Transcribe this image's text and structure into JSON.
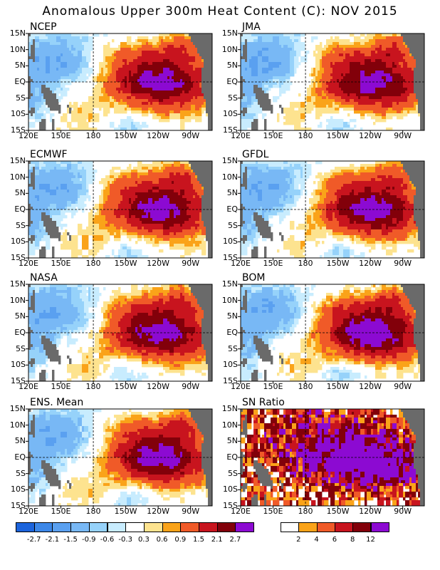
{
  "title": "Anomalous Upper 300m Heat Content (C): NOV 2015",
  "chart_data": [
    {
      "type": "heatmap",
      "title": "NCEP",
      "center_peak": 2.9,
      "xticks": [
        "120E",
        "150E",
        "180",
        "150W",
        "120W",
        "90W"
      ],
      "yticks": [
        "15N",
        "10N",
        "5N",
        "EQ",
        "5S",
        "10S",
        "15S"
      ]
    },
    {
      "type": "heatmap",
      "title": "JMA",
      "center_peak": 2.9,
      "xticks": [
        "120E",
        "150E",
        "180",
        "150W",
        "120W",
        "90W"
      ],
      "yticks": [
        "15N",
        "10N",
        "5N",
        "EQ",
        "5S",
        "10S",
        "15S"
      ]
    },
    {
      "type": "heatmap",
      "title": "ECMWF",
      "center_peak": 2.9,
      "xticks": [
        "120E",
        "150E",
        "180",
        "150W",
        "120W",
        "90W"
      ],
      "yticks": [
        "15N",
        "10N",
        "5N",
        "EQ",
        "5S",
        "10S",
        "15S"
      ]
    },
    {
      "type": "heatmap",
      "title": "GFDL",
      "center_peak": 2.9,
      "xticks": [
        "120E",
        "150E",
        "180",
        "150W",
        "120W",
        "90W"
      ],
      "yticks": [
        "15N",
        "10N",
        "5N",
        "EQ",
        "5S",
        "10S",
        "15S"
      ]
    },
    {
      "type": "heatmap",
      "title": "NASA",
      "center_peak": 2.9,
      "xticks": [
        "120E",
        "150E",
        "180",
        "150W",
        "120W",
        "90W"
      ],
      "yticks": [
        "15N",
        "10N",
        "5N",
        "EQ",
        "5S",
        "10S",
        "15S"
      ]
    },
    {
      "type": "heatmap",
      "title": "BOM",
      "center_peak": 3.2,
      "xticks": [
        "120E",
        "150E",
        "180",
        "150W",
        "120W",
        "90W"
      ],
      "yticks": [
        "15N",
        "10N",
        "5N",
        "EQ",
        "5S",
        "10S",
        "15S"
      ]
    },
    {
      "type": "heatmap",
      "title": "ENS. Mean",
      "center_peak": 2.9,
      "xticks": [
        "120E",
        "150E",
        "180",
        "150W",
        "120W",
        "90W"
      ],
      "yticks": [
        "15N",
        "10N",
        "5N",
        "EQ",
        "5S",
        "10S",
        "15S"
      ]
    },
    {
      "type": "heatmap",
      "title": "SN Ratio",
      "center_peak": 14,
      "xticks": [
        "120E",
        "150E",
        "180",
        "150W",
        "120W",
        "90W"
      ],
      "yticks": [
        "15N",
        "10N",
        "5N",
        "EQ",
        "5S",
        "10S",
        "15S"
      ]
    }
  ],
  "colorbar_anomaly": {
    "labels": [
      "-2.7",
      "-2.1",
      "-1.5",
      "-0.9",
      "-0.6",
      "-0.3",
      "0.3",
      "0.6",
      "0.9",
      "1.5",
      "2.1",
      "2.7"
    ],
    "colors": [
      "#1c64dc",
      "#3c87e8",
      "#5aa0f0",
      "#78b8f5",
      "#96d2fa",
      "#c8ecfe",
      "#ffffff",
      "#fde38f",
      "#faa319",
      "#f05a28",
      "#c8141e",
      "#82000a",
      "#8c0ad2"
    ]
  },
  "colorbar_snr": {
    "labels": [
      "2",
      "4",
      "6",
      "8",
      "12"
    ],
    "colors": [
      "#ffffff",
      "#faa319",
      "#f05a28",
      "#c8141e",
      "#82000a",
      "#8c0ad2"
    ]
  },
  "land_color": "#6a6a6a"
}
